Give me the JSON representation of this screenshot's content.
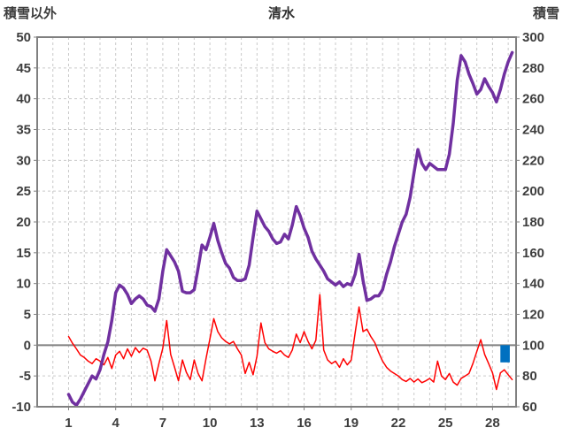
{
  "header": {
    "left_axis_title": "積雪以外",
    "chart_title": "清水",
    "right_axis_title": "積雪"
  },
  "chart_data": {
    "type": "line",
    "title": "清水",
    "x_ticks": [
      1,
      4,
      7,
      10,
      13,
      16,
      19,
      22,
      25,
      28
    ],
    "x_range": [
      -1,
      29.5
    ],
    "x_grid_step": 1,
    "left_axis": {
      "title": "積雪以外",
      "range": [
        -10,
        50
      ],
      "tick_step": 5,
      "ticks": [
        -10,
        -5,
        0,
        5,
        10,
        15,
        20,
        25,
        30,
        35,
        40,
        45,
        50
      ]
    },
    "right_axis": {
      "title": "積雪",
      "range": [
        60,
        300
      ],
      "tick_step": 20,
      "ticks": [
        60,
        80,
        100,
        120,
        140,
        160,
        180,
        200,
        220,
        240,
        260,
        280,
        300
      ]
    },
    "zero_line_left_value": 0,
    "grid": true,
    "legend": "none",
    "style": {
      "grid_color": "#c9c9c9",
      "axis_color": "#808080",
      "tick_label_color": "#3d3d3d"
    },
    "series": [
      {
        "name": "non-snow-red-line",
        "label": "積雪以外",
        "type": "line",
        "axis": "left",
        "color": "#ff0000",
        "stroke_width": 1.5,
        "x_start": 1,
        "x_step": 0.25,
        "values": [
          1.4,
          0.3,
          -0.6,
          -1.6,
          -2,
          -2.6,
          -3,
          -2.2,
          -2.6,
          -3.2,
          -2,
          -3.8,
          -1.6,
          -1,
          -2.2,
          -0.6,
          -1.8,
          -0.4,
          -1.2,
          -0.5,
          -0.8,
          -2.6,
          -5.8,
          -3,
          -0.5,
          4,
          -1.5,
          -3.6,
          -5.8,
          -2.4,
          -4.4,
          -5.6,
          -2.4,
          -4.6,
          -5.8,
          -2.2,
          1,
          4.3,
          2.2,
          1.2,
          0.6,
          0.2,
          0.6,
          -0.6,
          -1.6,
          -4.6,
          -2.8,
          -4.8,
          -1.8,
          3.6,
          0.4,
          -0.6,
          -1,
          -1.3,
          -0.9,
          -1.6,
          -2,
          -0.8,
          1.8,
          0.4,
          2.2,
          0.6,
          -0.6,
          0.8,
          8.2,
          -0.8,
          -2.4,
          -3,
          -2.6,
          -3.6,
          -2.2,
          -3.2,
          -2.4,
          2,
          6.2,
          2.2,
          2.6,
          1.4,
          0.4,
          -1.2,
          -2.6,
          -3.6,
          -4.2,
          -4.6,
          -5,
          -5.6,
          -5.9,
          -5.4,
          -6,
          -5.5,
          -6.1,
          -5.8,
          -5.4,
          -6,
          -2.6,
          -5,
          -5.6,
          -4.6,
          -6,
          -6.5,
          -5.4,
          -5,
          -4.6,
          -3,
          -1,
          0.9,
          -1.5,
          -3,
          -4.5,
          -7.2,
          -4.5,
          -4,
          -4.8,
          -5.6
        ]
      },
      {
        "name": "snow-depth-purple-line",
        "label": "積雪",
        "type": "line",
        "axis": "right",
        "color": "#7030a0",
        "stroke_width": 3.5,
        "x_start": 1,
        "x_step": 0.25,
        "values": [
          68,
          63,
          61,
          65,
          70,
          75,
          80,
          78,
          84,
          94,
          102,
          116,
          134,
          139,
          137,
          133,
          127,
          130,
          132,
          130,
          126,
          125,
          122,
          130,
          148,
          162,
          158,
          154,
          148,
          135,
          134,
          134,
          136,
          150,
          165,
          162,
          170,
          179,
          168,
          160,
          153,
          150,
          144,
          142,
          142,
          143,
          152,
          170,
          187,
          182,
          177,
          174,
          169,
          166,
          167,
          172,
          169,
          178,
          190,
          184,
          176,
          170,
          161,
          156,
          152,
          148,
          143,
          141,
          139,
          141,
          138,
          140,
          139,
          146,
          159,
          142,
          129,
          130,
          132,
          132,
          136,
          146,
          154,
          164,
          172,
          180,
          185,
          196,
          212,
          227,
          218,
          214,
          218,
          216,
          214,
          214,
          214,
          224,
          244,
          272,
          288,
          284,
          276,
          270,
          263,
          266,
          273,
          268,
          264,
          258,
          266,
          276,
          284,
          290
        ]
      },
      {
        "name": "blue-bar",
        "type": "bar",
        "axis": "left",
        "color": "#0070c0",
        "bar_width_days": 0.6,
        "x": [
          28.8
        ],
        "values": [
          -2.8
        ]
      }
    ]
  }
}
